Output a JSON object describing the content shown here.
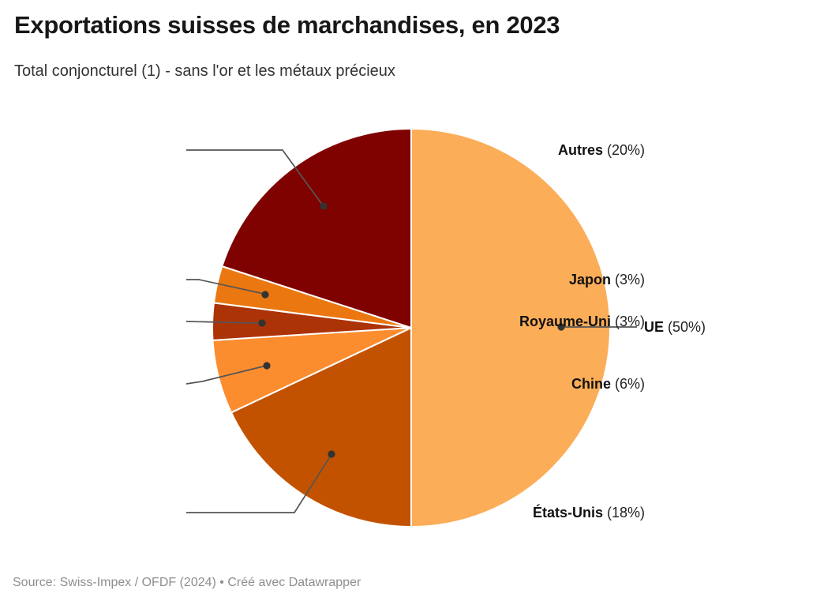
{
  "header": {
    "title": "Exportations suisses de marchandises, en 2023",
    "subtitle": "Total conjoncturel (1) - sans l'or et les métaux précieux"
  },
  "footer": {
    "source_line": "Source: Swiss-Impex / OFDF (2024) • Créé avec Datawrapper"
  },
  "colors": {
    "background": "#ffffff",
    "leader_line": "#555555",
    "leader_dot": "#333333",
    "slice_stroke": "#ffffff"
  },
  "chart_data": {
    "type": "pie",
    "title": "Exportations suisses de marchandises, en 2023",
    "subtitle": "Total conjoncturel (1) - sans l'or et les métaux précieux",
    "unit": "%",
    "start_angle_deg": 0,
    "direction": "clockwise",
    "legend": "none",
    "label_style": "callout-leader-lines",
    "slices": [
      {
        "label": "UE",
        "value": 50,
        "pct_label": "(50%)",
        "color": "#FBAD58"
      },
      {
        "label": "États-Unis",
        "value": 18,
        "pct_label": "(18%)",
        "color": "#C35200"
      },
      {
        "label": "Chine",
        "value": 6,
        "pct_label": "(6%)",
        "color": "#FB8D2F"
      },
      {
        "label": "Royaume-Uni",
        "value": 3,
        "pct_label": "(3%)",
        "color": "#AC3306"
      },
      {
        "label": "Japon",
        "value": 3,
        "pct_label": "(3%)",
        "color": "#EB7711"
      },
      {
        "label": "Autres",
        "value": 20,
        "pct_label": "(20%)",
        "color": "#800200"
      }
    ]
  }
}
